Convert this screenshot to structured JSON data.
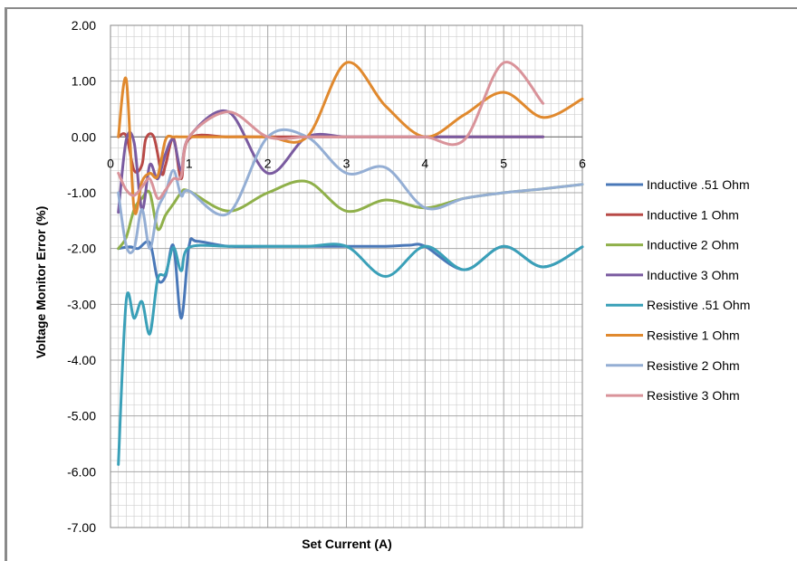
{
  "chart_data": {
    "type": "line",
    "xlabel": "Set Current (A)",
    "ylabel": "Voltage Monitor  Error (%)",
    "xlim": [
      0,
      6
    ],
    "ylim": [
      -7,
      2
    ],
    "x_ticks": [
      "0",
      "1",
      "2",
      "3",
      "4",
      "5",
      "6"
    ],
    "y_ticks": [
      "2.00",
      "1.00",
      "0.00",
      "-1.00",
      "-2.00",
      "-3.00",
      "-4.00",
      "-5.00",
      "-6.00",
      "-7.00"
    ],
    "grid": true,
    "legend_position": "right",
    "series": [
      {
        "name": "Inductive .51 Ohm",
        "color": "#4a78b8",
        "points": [
          [
            0.1,
            -2.0
          ],
          [
            0.25,
            -1.97
          ],
          [
            0.35,
            -2.0
          ],
          [
            0.5,
            -1.9
          ],
          [
            0.6,
            -2.55
          ],
          [
            0.7,
            -2.5
          ],
          [
            0.8,
            -1.95
          ],
          [
            0.9,
            -3.25
          ],
          [
            1.0,
            -1.95
          ],
          [
            1.1,
            -1.87
          ],
          [
            1.5,
            -1.96
          ],
          [
            2,
            -1.96
          ],
          [
            2.5,
            -1.96
          ],
          [
            3,
            -1.96
          ],
          [
            3.5,
            -1.96
          ],
          [
            3.8,
            -1.94
          ],
          [
            4,
            -1.96
          ],
          [
            4.5,
            -2.38
          ],
          [
            5,
            -1.96
          ],
          [
            5.5,
            -2.33
          ],
          [
            6,
            -1.97
          ]
        ]
      },
      {
        "name": "Inductive 1 Ohm",
        "color": "#b84a47",
        "points": [
          [
            0.1,
            0.0
          ],
          [
            0.2,
            0.02
          ],
          [
            0.3,
            -0.6
          ],
          [
            0.4,
            -0.5
          ],
          [
            0.45,
            -0.03
          ],
          [
            0.55,
            0.0
          ],
          [
            0.65,
            -0.65
          ],
          [
            0.7,
            -0.5
          ],
          [
            0.8,
            -0.02
          ],
          [
            0.9,
            -0.75
          ],
          [
            1.0,
            -0.03
          ],
          [
            1.5,
            0.0
          ],
          [
            2,
            0.0
          ],
          [
            2.5,
            0.0
          ],
          [
            3,
            0.0
          ],
          [
            3.5,
            0.0
          ],
          [
            4,
            0.0
          ],
          [
            4.5,
            0.0
          ],
          [
            5,
            0.0
          ],
          [
            5.5,
            0.0
          ]
        ]
      },
      {
        "name": "Inductive 2 Ohm",
        "color": "#8fb04a",
        "points": [
          [
            0.1,
            -2.0
          ],
          [
            0.2,
            -1.8
          ],
          [
            0.3,
            -1.3
          ],
          [
            0.4,
            -1.1
          ],
          [
            0.5,
            -1.0
          ],
          [
            0.6,
            -1.65
          ],
          [
            0.7,
            -1.4
          ],
          [
            0.8,
            -1.2
          ],
          [
            0.9,
            -1.0
          ],
          [
            1.0,
            -0.97
          ],
          [
            1.5,
            -1.33
          ],
          [
            2,
            -1.0
          ],
          [
            2.5,
            -0.8
          ],
          [
            3,
            -1.33
          ],
          [
            3.5,
            -1.13
          ],
          [
            4,
            -1.27
          ],
          [
            4.5,
            -1.1
          ],
          [
            5,
            -1.0
          ],
          [
            5.5,
            -0.93
          ],
          [
            6,
            -0.85
          ]
        ]
      },
      {
        "name": "Inductive 3 Ohm",
        "color": "#7a5ba0",
        "points": [
          [
            0.1,
            -1.35
          ],
          [
            0.2,
            -0.05
          ],
          [
            0.3,
            -0.1
          ],
          [
            0.4,
            -1.3
          ],
          [
            0.5,
            -0.5
          ],
          [
            0.6,
            -0.75
          ],
          [
            0.7,
            -0.3
          ],
          [
            0.8,
            -0.05
          ],
          [
            0.9,
            -0.6
          ],
          [
            1.0,
            0.0
          ],
          [
            1.5,
            0.45
          ],
          [
            2,
            -0.65
          ],
          [
            2.5,
            0.0
          ],
          [
            3,
            0.0
          ],
          [
            3.5,
            0.0
          ],
          [
            4,
            0.0
          ],
          [
            4.5,
            0.0
          ],
          [
            5,
            0.0
          ],
          [
            5.5,
            0.0
          ]
        ]
      },
      {
        "name": "Resistive .51 Ohm",
        "color": "#3aa0b8",
        "points": [
          [
            0.1,
            -5.87
          ],
          [
            0.2,
            -2.93
          ],
          [
            0.3,
            -3.25
          ],
          [
            0.4,
            -2.95
          ],
          [
            0.5,
            -3.53
          ],
          [
            0.6,
            -2.55
          ],
          [
            0.7,
            -2.45
          ],
          [
            0.8,
            -1.98
          ],
          [
            0.9,
            -2.4
          ],
          [
            1.0,
            -1.98
          ],
          [
            1.5,
            -1.96
          ],
          [
            2,
            -1.96
          ],
          [
            2.5,
            -1.96
          ],
          [
            3,
            -1.96
          ],
          [
            3.5,
            -2.5
          ],
          [
            4,
            -1.96
          ],
          [
            4.5,
            -2.38
          ],
          [
            5,
            -1.96
          ],
          [
            5.5,
            -2.33
          ],
          [
            6,
            -1.97
          ]
        ]
      },
      {
        "name": "Resistive 1 Ohm",
        "color": "#e0892e",
        "points": [
          [
            0.1,
            0.0
          ],
          [
            0.2,
            1.03
          ],
          [
            0.3,
            -1.3
          ],
          [
            0.4,
            -0.8
          ],
          [
            0.5,
            -0.65
          ],
          [
            0.6,
            -0.7
          ],
          [
            0.7,
            -0.05
          ],
          [
            0.8,
            0.0
          ],
          [
            0.9,
            0.0
          ],
          [
            1.0,
            0.0
          ],
          [
            1.5,
            0.0
          ],
          [
            2,
            0.0
          ],
          [
            2.5,
            0.0
          ],
          [
            3,
            1.33
          ],
          [
            3.5,
            0.55
          ],
          [
            4,
            0.0
          ],
          [
            4.5,
            0.4
          ],
          [
            5,
            0.8
          ],
          [
            5.5,
            0.35
          ],
          [
            6,
            0.68
          ]
        ]
      },
      {
        "name": "Resistive 2 Ohm",
        "color": "#94aed4",
        "points": [
          [
            0.1,
            -1.0
          ],
          [
            0.2,
            -1.95
          ],
          [
            0.3,
            -2.0
          ],
          [
            0.4,
            -1.3
          ],
          [
            0.5,
            -2.0
          ],
          [
            0.6,
            -1.3
          ],
          [
            0.7,
            -1.0
          ],
          [
            0.8,
            -0.6
          ],
          [
            0.9,
            -1.05
          ],
          [
            1.0,
            -0.97
          ],
          [
            1.5,
            -1.37
          ],
          [
            2,
            0.0
          ],
          [
            2.5,
            0.0
          ],
          [
            3,
            -0.65
          ],
          [
            3.5,
            -0.55
          ],
          [
            4,
            -1.27
          ],
          [
            4.5,
            -1.1
          ],
          [
            5,
            -1.0
          ],
          [
            5.5,
            -0.93
          ],
          [
            6,
            -0.85
          ]
        ]
      },
      {
        "name": "Resistive 3 Ohm",
        "color": "#d9939a",
        "points": [
          [
            0.1,
            -0.65
          ],
          [
            0.2,
            -0.95
          ],
          [
            0.3,
            -1.05
          ],
          [
            0.4,
            -0.9
          ],
          [
            0.5,
            -0.75
          ],
          [
            0.6,
            -1.1
          ],
          [
            0.7,
            -0.95
          ],
          [
            0.8,
            -0.75
          ],
          [
            0.9,
            -0.7
          ],
          [
            1.0,
            0.0
          ],
          [
            1.5,
            0.45
          ],
          [
            2,
            0.0
          ],
          [
            2.5,
            0.0
          ],
          [
            3,
            0.0
          ],
          [
            3.5,
            0.0
          ],
          [
            4,
            0.0
          ],
          [
            4.5,
            -0.05
          ],
          [
            5,
            1.33
          ],
          [
            5.5,
            0.6
          ]
        ]
      }
    ]
  }
}
